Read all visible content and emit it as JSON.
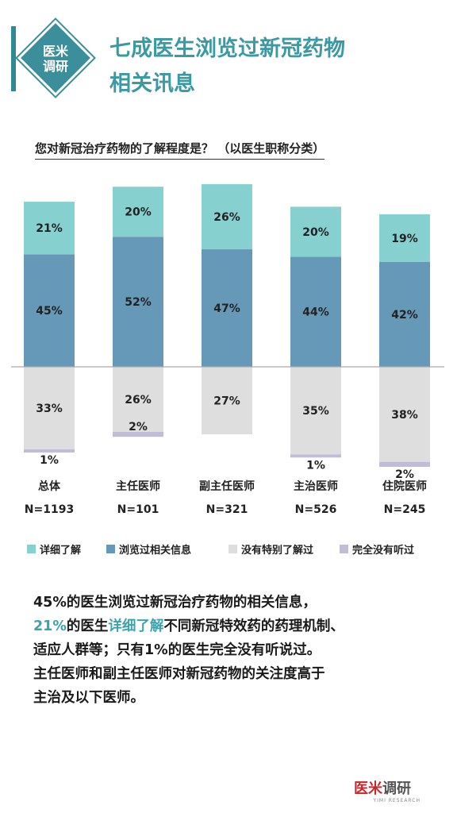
{
  "header": {
    "badge_line1": "医米",
    "badge_line2": "调研",
    "title_line1": "七成医生浏览过新冠药物",
    "title_line2": "相关讯息"
  },
  "question": "您对新冠治疗药物的了解程度是？ （以医生职称分类）",
  "colors": {
    "detailed": "#86d0cf",
    "browsed": "#6699b7",
    "not_specifically": "#dedede",
    "never_heard": "#c1bdd8",
    "accent": "#3a9aa3"
  },
  "chart_data": {
    "type": "bar",
    "subtype": "diverging-stacked",
    "categories": [
      "总体",
      "主任医师",
      "副主任医师",
      "主治医师",
      "住院医师"
    ],
    "sample_sizes": [
      "N=1193",
      "N=101",
      "N=321",
      "N=526",
      "N=245"
    ],
    "series": [
      {
        "name": "详细了解",
        "values": [
          21,
          20,
          26,
          20,
          19
        ],
        "labels": [
          "21%",
          "20%",
          "26%",
          "20%",
          "19%"
        ],
        "direction": "up"
      },
      {
        "name": "浏览过相关信息",
        "values": [
          45,
          52,
          47,
          44,
          42
        ],
        "labels": [
          "45%",
          "52%",
          "47%",
          "44%",
          "42%"
        ],
        "direction": "up"
      },
      {
        "name": "没有特别了解过",
        "values": [
          33,
          26,
          27,
          35,
          38
        ],
        "labels": [
          "33%",
          "26%",
          "27%",
          "35%",
          "38%"
        ],
        "direction": "down"
      },
      {
        "name": "完全没有听过",
        "values": [
          1,
          2,
          0,
          1,
          2
        ],
        "labels": [
          "1%",
          "2%",
          "",
          "1%",
          "2%"
        ],
        "direction": "down"
      }
    ],
    "baseline": 0,
    "legend_position": "bottom",
    "grid": false
  },
  "summary": {
    "line1": "45%的医生浏览过新冠治疗药物的相关信息，",
    "line2_hl1": "21%",
    "line2_a": "的医生",
    "line2_hl2": "详细了解",
    "line2_b": "不同新冠特效药的药理机制、",
    "line3": "适应人群等；只有1%的医生完全没有听说过。",
    "line4": "主任医师和副主任医师对新冠药物的关注度高于",
    "line5": "主治及以下医师。"
  },
  "logo": {
    "part1": "医米",
    "part2": "调研",
    "sub": "YIMI RESEARCH"
  }
}
